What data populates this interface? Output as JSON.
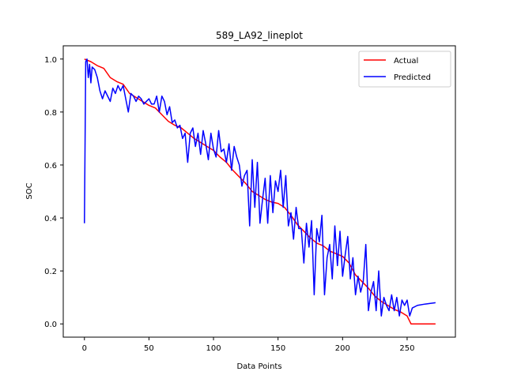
{
  "chart_data": {
    "type": "line",
    "title": "589_LA92_lineplot",
    "xlabel": "Data Points",
    "ylabel": "SOC",
    "xlim": [
      -16.4,
      287.4
    ],
    "ylim": [
      -0.05,
      1.05
    ],
    "xticks": [
      0,
      50,
      100,
      150,
      200,
      250
    ],
    "yticks": [
      0.0,
      0.2,
      0.4,
      0.6,
      0.8,
      1.0
    ],
    "xtick_labels": [
      "0",
      "50",
      "100",
      "150",
      "200",
      "250"
    ],
    "ytick_labels": [
      "0.0",
      "0.2",
      "0.4",
      "0.6",
      "0.8",
      "1.0"
    ],
    "grid": false,
    "legend_position": "top-right",
    "series": [
      {
        "name": "Actual",
        "color": "#ff0000",
        "points": [
          [
            0,
            1.0
          ],
          [
            5,
            0.99
          ],
          [
            10,
            0.975
          ],
          [
            15,
            0.965
          ],
          [
            20,
            0.93
          ],
          [
            25,
            0.915
          ],
          [
            30,
            0.905
          ],
          [
            35,
            0.87
          ],
          [
            40,
            0.855
          ],
          [
            45,
            0.84
          ],
          [
            50,
            0.825
          ],
          [
            55,
            0.815
          ],
          [
            60,
            0.79
          ],
          [
            65,
            0.765
          ],
          [
            70,
            0.75
          ],
          [
            75,
            0.74
          ],
          [
            80,
            0.72
          ],
          [
            85,
            0.7
          ],
          [
            90,
            0.685
          ],
          [
            95,
            0.67
          ],
          [
            100,
            0.655
          ],
          [
            105,
            0.63
          ],
          [
            110,
            0.61
          ],
          [
            115,
            0.58
          ],
          [
            120,
            0.555
          ],
          [
            125,
            0.53
          ],
          [
            130,
            0.5
          ],
          [
            135,
            0.485
          ],
          [
            140,
            0.47
          ],
          [
            145,
            0.46
          ],
          [
            150,
            0.455
          ],
          [
            155,
            0.44
          ],
          [
            160,
            0.41
          ],
          [
            165,
            0.375
          ],
          [
            170,
            0.35
          ],
          [
            175,
            0.325
          ],
          [
            180,
            0.305
          ],
          [
            185,
            0.295
          ],
          [
            190,
            0.275
          ],
          [
            195,
            0.265
          ],
          [
            200,
            0.255
          ],
          [
            205,
            0.23
          ],
          [
            210,
            0.185
          ],
          [
            215,
            0.16
          ],
          [
            220,
            0.135
          ],
          [
            225,
            0.105
          ],
          [
            230,
            0.085
          ],
          [
            235,
            0.07
          ],
          [
            240,
            0.055
          ],
          [
            245,
            0.045
          ],
          [
            250,
            0.03
          ],
          [
            253,
            0.0
          ],
          [
            260,
            0.0
          ],
          [
            272,
            0.0
          ]
        ]
      },
      {
        "name": "Predicted",
        "color": "#0000ff",
        "points": [
          [
            0,
            0.38
          ],
          [
            1,
            0.99
          ],
          [
            2,
            1.0
          ],
          [
            3,
            0.93
          ],
          [
            4,
            0.98
          ],
          [
            5,
            0.91
          ],
          [
            6,
            0.97
          ],
          [
            8,
            0.96
          ],
          [
            10,
            0.93
          ],
          [
            12,
            0.88
          ],
          [
            14,
            0.85
          ],
          [
            16,
            0.88
          ],
          [
            18,
            0.86
          ],
          [
            20,
            0.84
          ],
          [
            22,
            0.89
          ],
          [
            24,
            0.87
          ],
          [
            26,
            0.9
          ],
          [
            28,
            0.88
          ],
          [
            30,
            0.9
          ],
          [
            32,
            0.85
          ],
          [
            34,
            0.8
          ],
          [
            36,
            0.87
          ],
          [
            38,
            0.86
          ],
          [
            40,
            0.84
          ],
          [
            42,
            0.86
          ],
          [
            44,
            0.85
          ],
          [
            46,
            0.83
          ],
          [
            48,
            0.84
          ],
          [
            50,
            0.85
          ],
          [
            52,
            0.83
          ],
          [
            54,
            0.83
          ],
          [
            56,
            0.86
          ],
          [
            58,
            0.8
          ],
          [
            60,
            0.86
          ],
          [
            62,
            0.84
          ],
          [
            64,
            0.79
          ],
          [
            66,
            0.82
          ],
          [
            68,
            0.76
          ],
          [
            70,
            0.77
          ],
          [
            72,
            0.74
          ],
          [
            74,
            0.75
          ],
          [
            76,
            0.7
          ],
          [
            78,
            0.72
          ],
          [
            80,
            0.61
          ],
          [
            82,
            0.72
          ],
          [
            84,
            0.74
          ],
          [
            86,
            0.67
          ],
          [
            88,
            0.72
          ],
          [
            90,
            0.64
          ],
          [
            92,
            0.73
          ],
          [
            94,
            0.68
          ],
          [
            96,
            0.62
          ],
          [
            98,
            0.72
          ],
          [
            100,
            0.66
          ],
          [
            102,
            0.63
          ],
          [
            104,
            0.73
          ],
          [
            106,
            0.65
          ],
          [
            108,
            0.66
          ],
          [
            110,
            0.61
          ],
          [
            112,
            0.68
          ],
          [
            114,
            0.58
          ],
          [
            116,
            0.67
          ],
          [
            118,
            0.63
          ],
          [
            120,
            0.6
          ],
          [
            122,
            0.52
          ],
          [
            124,
            0.56
          ],
          [
            126,
            0.58
          ],
          [
            128,
            0.37
          ],
          [
            130,
            0.62
          ],
          [
            132,
            0.44
          ],
          [
            134,
            0.61
          ],
          [
            136,
            0.38
          ],
          [
            138,
            0.47
          ],
          [
            140,
            0.55
          ],
          [
            142,
            0.38
          ],
          [
            144,
            0.56
          ],
          [
            146,
            0.42
          ],
          [
            148,
            0.54
          ],
          [
            150,
            0.5
          ],
          [
            152,
            0.58
          ],
          [
            154,
            0.44
          ],
          [
            156,
            0.56
          ],
          [
            158,
            0.37
          ],
          [
            160,
            0.42
          ],
          [
            162,
            0.32
          ],
          [
            164,
            0.44
          ],
          [
            166,
            0.36
          ],
          [
            168,
            0.36
          ],
          [
            170,
            0.23
          ],
          [
            172,
            0.38
          ],
          [
            174,
            0.29
          ],
          [
            176,
            0.39
          ],
          [
            178,
            0.11
          ],
          [
            180,
            0.36
          ],
          [
            182,
            0.31
          ],
          [
            184,
            0.41
          ],
          [
            186,
            0.11
          ],
          [
            188,
            0.25
          ],
          [
            190,
            0.3
          ],
          [
            192,
            0.17
          ],
          [
            194,
            0.37
          ],
          [
            196,
            0.22
          ],
          [
            198,
            0.35
          ],
          [
            200,
            0.18
          ],
          [
            202,
            0.26
          ],
          [
            204,
            0.33
          ],
          [
            206,
            0.17
          ],
          [
            208,
            0.25
          ],
          [
            210,
            0.11
          ],
          [
            212,
            0.18
          ],
          [
            214,
            0.12
          ],
          [
            216,
            0.16
          ],
          [
            218,
            0.3
          ],
          [
            220,
            0.05
          ],
          [
            222,
            0.12
          ],
          [
            224,
            0.16
          ],
          [
            226,
            0.05
          ],
          [
            228,
            0.2
          ],
          [
            230,
            0.03
          ],
          [
            232,
            0.1
          ],
          [
            234,
            0.07
          ],
          [
            236,
            0.05
          ],
          [
            238,
            0.11
          ],
          [
            240,
            0.05
          ],
          [
            242,
            0.1
          ],
          [
            244,
            0.03
          ],
          [
            246,
            0.09
          ],
          [
            248,
            0.07
          ],
          [
            250,
            0.09
          ],
          [
            252,
            0.03
          ],
          [
            254,
            0.06
          ],
          [
            258,
            0.07
          ],
          [
            264,
            0.075
          ],
          [
            272,
            0.08
          ]
        ]
      }
    ]
  }
}
